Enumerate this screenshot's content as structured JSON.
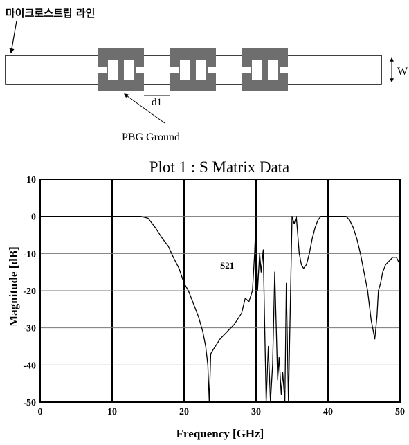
{
  "diagram": {
    "microstrip_label": "마이크로스트립 라인",
    "d1_label": "d1",
    "w_label": "W",
    "pbg_label": "PBG Ground",
    "colors": {
      "pbg_fill": "#6e6e6e",
      "line_fill": "#ffffff"
    }
  },
  "chart_data": {
    "type": "line",
    "title": "Plot 1 : S Matrix Data",
    "xlabel": "Frequency [GHz]",
    "ylabel": "Magnitude [dB]",
    "xlim": [
      0,
      50
    ],
    "ylim": [
      -50,
      10
    ],
    "xticks": [
      "0",
      "10",
      "20",
      "30",
      "40",
      "50"
    ],
    "yticks": [
      "10",
      "0",
      "-10",
      "-20",
      "-30",
      "-40",
      "-50"
    ],
    "grid": true,
    "annotations": [
      {
        "text": "S21",
        "x": 25,
        "y": -14
      }
    ],
    "series": [
      {
        "name": "S21",
        "color": "#000000",
        "x": [
          0,
          10,
          14,
          15,
          16,
          17,
          17.8,
          18.5,
          19.3,
          20,
          20.6,
          21.2,
          22,
          22.6,
          23,
          23.3,
          23.5,
          23.7,
          24,
          25,
          26,
          27,
          28,
          28.5,
          29,
          29.5,
          29.8,
          30,
          30.2,
          30.5,
          30.7,
          31,
          31.2,
          31.4,
          31.7,
          32,
          32.3,
          32.6,
          33,
          33.2,
          33.5,
          33.7,
          34,
          34.2,
          34.5,
          35,
          35.3,
          35.6,
          35.8,
          36,
          36.3,
          36.6,
          37,
          37.4,
          37.8,
          38.2,
          38.6,
          39,
          39.5,
          40,
          41,
          42,
          42.5,
          43,
          43.5,
          44,
          44.5,
          45,
          45.5,
          46,
          46.5,
          46.8,
          47,
          47.3,
          47.6,
          48,
          48.5,
          49,
          49.5,
          50
        ],
        "y": [
          0,
          0,
          0,
          -0.5,
          -3,
          -6,
          -8,
          -11,
          -14,
          -18,
          -20,
          -23,
          -27,
          -31,
          -35,
          -40,
          -50,
          -37,
          -36,
          -33,
          -31,
          -29,
          -26,
          -22,
          -23,
          -20,
          -10,
          0,
          -20,
          -10,
          -15,
          -9,
          -30,
          -50,
          -35,
          -50,
          -40,
          -15,
          -44,
          -38,
          -48,
          -42,
          -50,
          -18,
          -50,
          0,
          -2,
          0,
          -5,
          -10,
          -13,
          -14,
          -13,
          -10,
          -6,
          -3,
          -1,
          0,
          0,
          0,
          0,
          0,
          0,
          -1,
          -3,
          -6,
          -10,
          -15,
          -20,
          -28,
          -33,
          -27,
          -20,
          -18,
          -15,
          -13,
          -12,
          -11,
          -11,
          -13
        ]
      }
    ]
  }
}
